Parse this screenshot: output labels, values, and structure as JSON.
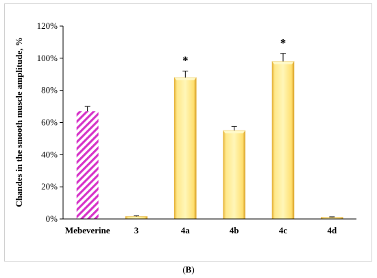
{
  "caption": {
    "open": "(",
    "letter": "B",
    "close": ")"
  },
  "chart_data": {
    "type": "bar",
    "ylabel": "Chandes in the smooth muscle amplitude, %",
    "ylim": [
      0,
      120
    ],
    "yticks": [
      0,
      20,
      40,
      60,
      80,
      100,
      120
    ],
    "ytick_labels": [
      "0%",
      "20%",
      "40%",
      "60%",
      "80%",
      "100%",
      "120%"
    ],
    "categories": [
      "Mebeverine",
      "3",
      "4a",
      "4b",
      "4c",
      "4d"
    ],
    "values": [
      67,
      1.5,
      88,
      55,
      98,
      1
    ],
    "errors": [
      3,
      0.5,
      4,
      2.5,
      5,
      0.3
    ],
    "significance": [
      "",
      "",
      "*",
      "",
      "*",
      ""
    ],
    "bar_styles": [
      "hatched",
      "solid",
      "solid",
      "solid",
      "solid",
      "solid"
    ],
    "colors": {
      "hatch": "#d633c8",
      "bar_light": "#fff3a6",
      "bar_mid": "#ffd75a",
      "bar_dark": "#e0a92a",
      "axis": "#000000"
    },
    "grid": false,
    "legend": "none"
  }
}
